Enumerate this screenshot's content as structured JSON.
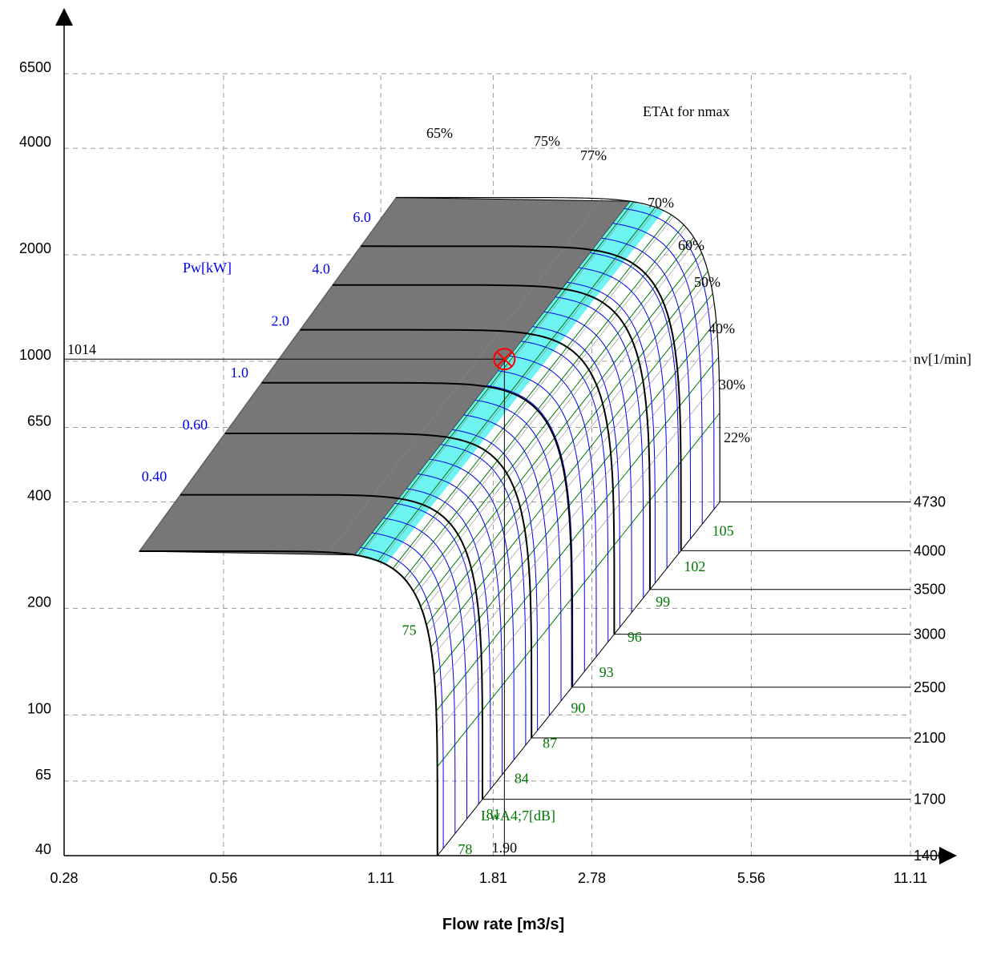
{
  "colors": {
    "axis": "#000000",
    "grid": "#999999",
    "power": "#0000ee",
    "sound": "#007700",
    "eta_band": "#6ef3f3",
    "eta_band2": "#ffffff",
    "eta_max": "#777777",
    "marker": "#ff0000"
  },
  "chart_data": {
    "type": "line",
    "title": "",
    "xlabel": "Flow rate [m3/s]",
    "ylabel": "",
    "x_scale": "log",
    "y_scale": "log",
    "xlim": [
      0.28,
      11.11
    ],
    "ylim": [
      40,
      6500
    ],
    "x_ticks": [
      "0.28",
      "0.56",
      "1.11",
      "1.81",
      "2.78",
      "5.56",
      "11.11"
    ],
    "y_ticks": [
      "40",
      "65",
      "100",
      "200",
      "400",
      "650",
      "1000",
      "2000",
      "4000",
      "6500"
    ],
    "grid": true,
    "speed_axis_label": "nv[1/min]",
    "speeds": [
      {
        "label": "1400",
        "value": 1400
      },
      {
        "label": "1700",
        "value": 1700
      },
      {
        "label": "2100",
        "value": 2100
      },
      {
        "label": "2500",
        "value": 2500
      },
      {
        "label": "3000",
        "value": 3000
      },
      {
        "label": "3500",
        "value": 3500
      },
      {
        "label": "4000",
        "value": 4000
      },
      {
        "label": "4730",
        "value": 4730
      }
    ],
    "power_label": "Pw[kW]",
    "power_levels": [
      "0.40",
      "0.60",
      "1.0",
      "2.0",
      "4.0",
      "6.0"
    ],
    "sound_label": "LwA4;7[dB]",
    "sound_levels": [
      "75",
      "78",
      "81",
      "84",
      "87",
      "90",
      "93",
      "96",
      "99",
      "102",
      "105"
    ],
    "efficiency_title": "ETAt for nmax",
    "efficiency_levels": [
      "65%",
      "75%",
      "77%",
      "70%",
      "60%",
      "50%",
      "40%",
      "30%",
      "22%"
    ],
    "operating_point": {
      "x": 1.9,
      "y": 1014,
      "x_label": "1.90",
      "y_label": "1014"
    }
  }
}
